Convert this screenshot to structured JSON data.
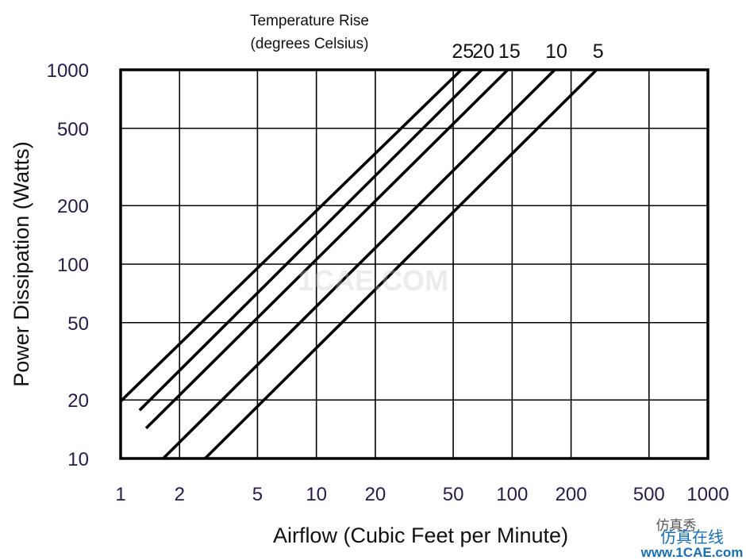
{
  "chart_data": {
    "type": "line",
    "legend_title_line1": "Temperature Rise",
    "legend_title_line2": "(degrees Celsius)",
    "xlabel": "Airflow (Cubic Feet per Minute)",
    "ylabel": "Power Dissipation (Watts)",
    "x_scale": "log",
    "y_scale": "log",
    "xlim": [
      1,
      1000
    ],
    "ylim": [
      10,
      1000
    ],
    "grid": true,
    "x_ticks": [
      1,
      2,
      5,
      10,
      20,
      50,
      100,
      200,
      500,
      1000
    ],
    "x_tick_labels": [
      "1",
      "2",
      "5",
      "10",
      "20",
      "50",
      "100",
      "200",
      "500",
      "1000"
    ],
    "y_ticks": [
      10,
      20,
      50,
      100,
      200,
      500,
      1000
    ],
    "y_tick_labels": [
      "10",
      "20",
      "50",
      "100",
      "200",
      "500",
      "1000"
    ],
    "legend_placement": "top, above the lines",
    "series": [
      {
        "name": "25",
        "x": [
          1,
          55
        ],
        "y": [
          19.7,
          1000
        ]
      },
      {
        "name": "20",
        "x": [
          1.25,
          70
        ],
        "y": [
          17.7,
          1000
        ]
      },
      {
        "name": "15",
        "x": [
          1.35,
          95
        ],
        "y": [
          14.3,
          1000
        ]
      },
      {
        "name": "10",
        "x": [
          1.65,
          165
        ],
        "y": [
          10,
          1000
        ]
      },
      {
        "name": "5",
        "x": [
          2.7,
          270
        ],
        "y": [
          10,
          1000
        ]
      }
    ]
  },
  "watermark": {
    "center_text": "1CAE.COM",
    "brand_text": "www.1CAE.com",
    "brand_cn_top": "仿真秀",
    "brand_cn_bottom": "仿真在线"
  }
}
